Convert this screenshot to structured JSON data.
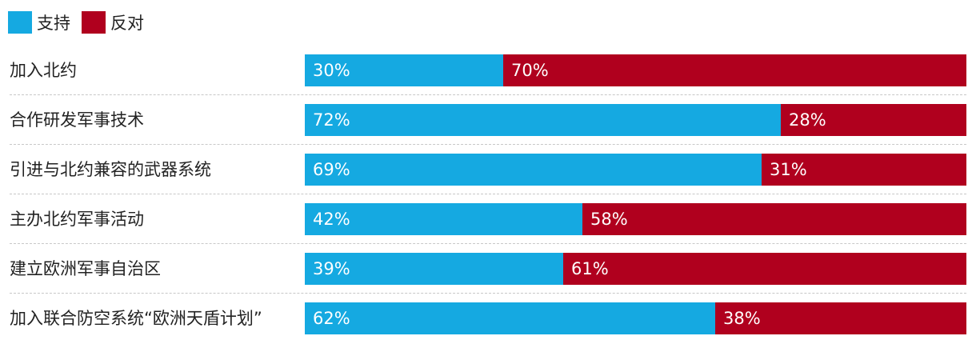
{
  "legend": {
    "items": [
      {
        "label": "支持",
        "color": "#15A9E1"
      },
      {
        "label": "反对",
        "color": "#B0001E"
      }
    ],
    "placement": "top-left"
  },
  "chart_data": {
    "type": "bar",
    "orientation": "horizontal",
    "stacked": true,
    "categories": [
      "加入北约",
      "合作研发军事技术",
      "引进与北约兼容的武器系统",
      "主办北约军事活动",
      "建立欧洲军事自治区",
      "加入联合防空系统“欧洲天盾计划”"
    ],
    "series": [
      {
        "name": "支持",
        "color": "#15A9E1",
        "values": [
          30,
          72,
          69,
          42,
          39,
          62
        ],
        "labels": [
          "30%",
          "72%",
          "69%",
          "42%",
          "39%",
          "62%"
        ]
      },
      {
        "name": "反对",
        "color": "#B0001E",
        "values": [
          70,
          28,
          31,
          58,
          61,
          38
        ],
        "labels": [
          "70%",
          "28%",
          "31%",
          "58%",
          "61%",
          "38%"
        ]
      }
    ],
    "xlim": [
      0,
      100
    ],
    "grid": false
  }
}
